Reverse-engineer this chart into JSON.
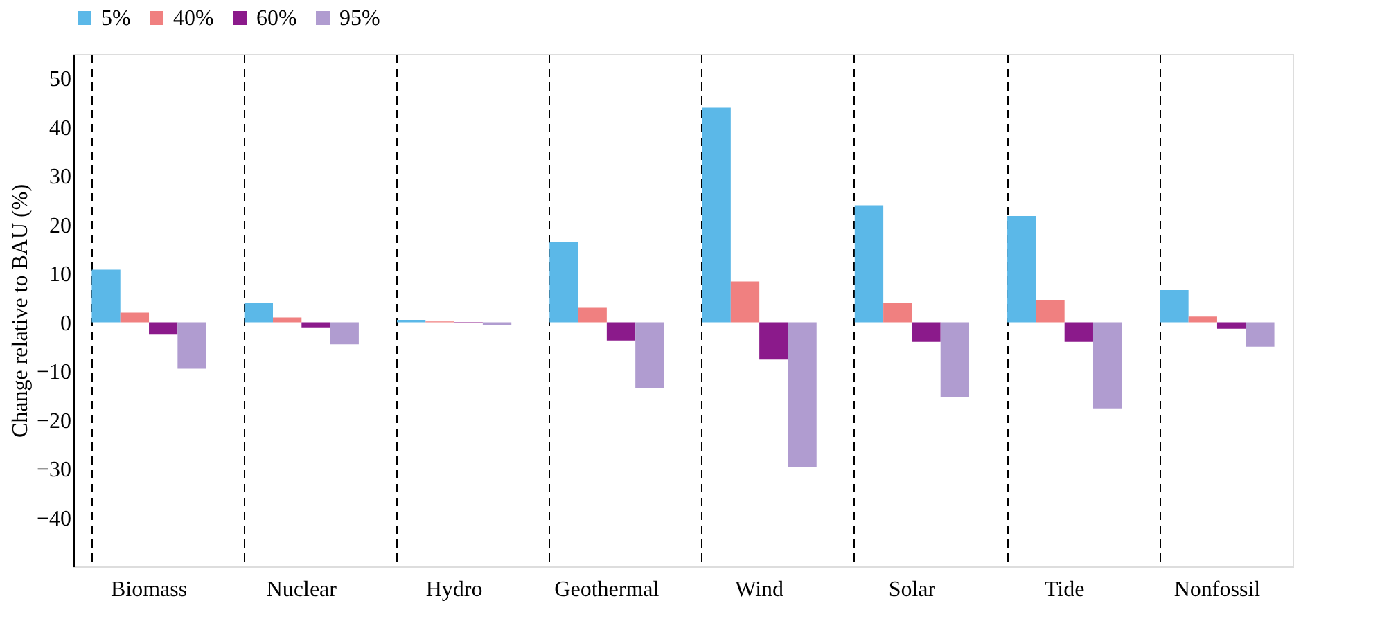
{
  "chart_data": {
    "type": "bar",
    "ylabel": "Change relative to BAU (%)",
    "categories": [
      "Biomass",
      "Nuclear",
      "Hydro",
      "Geothermal",
      "Wind",
      "Solar",
      "Tide",
      "Nonfossil"
    ],
    "series": [
      {
        "name": "5%",
        "color": "#5bb8e8",
        "values": [
          10.8,
          4,
          0.5,
          16.5,
          44,
          24,
          21.8,
          6.6
        ]
      },
      {
        "name": "40%",
        "color": "#f08080",
        "values": [
          2,
          1,
          0.2,
          3,
          8.4,
          4,
          4.5,
          1.2
        ]
      },
      {
        "name": "60%",
        "color": "#8b1a8b",
        "values": [
          -2.5,
          -1,
          -0.2,
          -3.7,
          -7.6,
          -4,
          -4,
          -1.3
        ]
      },
      {
        "name": "95%",
        "color": "#b09cd0",
        "values": [
          -9.5,
          -4.5,
          -0.5,
          -13.4,
          -29.7,
          -15.3,
          -17.6,
          -5
        ]
      }
    ],
    "ylim": [
      -50,
      55
    ],
    "yticks": [
      -40,
      -30,
      -20,
      -10,
      0,
      10,
      20,
      30,
      40,
      50
    ],
    "grid": "x",
    "legend": "top"
  }
}
